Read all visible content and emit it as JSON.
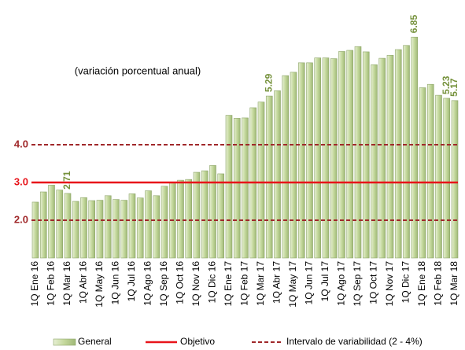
{
  "chart_data": {
    "type": "bar",
    "annotation": "(variación porcentual anual)",
    "categories": [
      "1Q Ene 16",
      null,
      "1Q Feb 16",
      null,
      "1Q Mar 16",
      null,
      "1Q Abr 16",
      null,
      "1Q May 16",
      null,
      "1Q Jun 16",
      null,
      "1Q Jul 16",
      null,
      "1Q Ago 16",
      null,
      "1Q Sep 16",
      null,
      "1Q Oct 16",
      null,
      "1Q Nov 16",
      null,
      "1Q Dic 16",
      null,
      "1Q Ene 17",
      null,
      "1Q Feb 17",
      null,
      "1Q Mar 17",
      null,
      "1Q Abr 17",
      null,
      "1Q May 17",
      null,
      "1Q Jun 17",
      null,
      "1Q Jul 17",
      null,
      "1Q Ago 17",
      null,
      "1Q Sep 17",
      null,
      "1Q Oct 17",
      null,
      "1Q Nov 17",
      null,
      "1Q Dic 17",
      null,
      "1Q Ene 18",
      null,
      "1Q Feb 18",
      null,
      "1Q Mar 18"
    ],
    "series": [
      {
        "name": "General",
        "color": "#c4d89c",
        "values": [
          2.48,
          2.75,
          2.93,
          2.8,
          2.71,
          2.5,
          2.6,
          2.52,
          2.53,
          2.65,
          2.55,
          2.53,
          2.7,
          2.59,
          2.78,
          2.65,
          2.9,
          3.0,
          3.06,
          3.08,
          3.27,
          3.31,
          3.45,
          3.23,
          4.78,
          4.7,
          4.71,
          4.98,
          5.13,
          5.29,
          5.43,
          5.83,
          5.92,
          6.17,
          6.17,
          6.3,
          6.3,
          6.28,
          6.47,
          6.5,
          6.6,
          6.46,
          6.12,
          6.29,
          6.37,
          6.52,
          6.63,
          6.85,
          5.51,
          5.6,
          5.31,
          5.23,
          5.17
        ],
        "value_labels": [
          null,
          null,
          null,
          null,
          "2.71",
          null,
          null,
          null,
          null,
          null,
          null,
          null,
          null,
          null,
          null,
          null,
          null,
          null,
          null,
          null,
          null,
          null,
          null,
          null,
          null,
          null,
          null,
          null,
          null,
          "5.29",
          null,
          null,
          null,
          null,
          null,
          null,
          null,
          null,
          null,
          null,
          null,
          null,
          null,
          null,
          null,
          null,
          null,
          "6.85",
          null,
          null,
          null,
          "5.23",
          "5.17"
        ]
      }
    ],
    "target": {
      "name": "Objetivo",
      "value": 3,
      "label": "3.0",
      "color": "#e8141a"
    },
    "band": {
      "name": "Intervalo de variabilidad (2 - 4%)",
      "color": "#a0282a",
      "lower": {
        "value": 2,
        "label": "2.0"
      },
      "upper": {
        "value": 4,
        "label": "4.0"
      }
    },
    "value_label_color": "#76923c",
    "ylim": [
      1,
      7.5
    ]
  }
}
